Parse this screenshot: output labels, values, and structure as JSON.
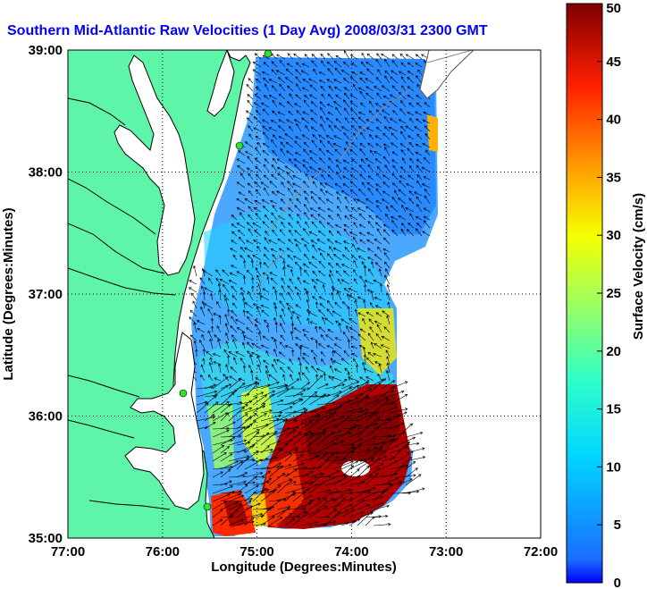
{
  "map": {
    "title": "Southern Mid-Atlantic Raw Velocities (1 Day Avg) 2008/03/31 2300 GMT",
    "xlabel": "Longitude (Degrees:Minutes)",
    "ylabel": "Latitude (Degrees:Minutes)",
    "x_ticks": [
      "77:00",
      "76:00",
      "75:00",
      "74:00",
      "73:00",
      "72:00"
    ],
    "y_ticks": [
      "39:00",
      "38:00",
      "37:00",
      "36:00",
      "35:00"
    ],
    "grid": "dotted",
    "colors": {
      "land": "#5ff5a8",
      "water": "#ffffff",
      "coast": "#000000",
      "vector": "#000000",
      "station": "#2fe22f",
      "title": "#0000ff"
    }
  },
  "colorbar": {
    "label": "Surface Velocity (cm/s)",
    "ticks": [
      "0",
      "5",
      "10",
      "15",
      "20",
      "25",
      "30",
      "35",
      "40",
      "45",
      "50"
    ],
    "range": [
      0,
      50
    ],
    "colormap": "jet"
  }
}
